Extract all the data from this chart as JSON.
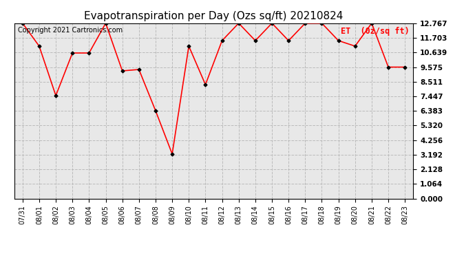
{
  "title": "Evapotranspiration per Day (Ozs sq/ft) 20210824",
  "legend_label": "ET  (0z/sq ft)",
  "copyright_text": "Copyright 2021 Cartronics.com",
  "dates": [
    "07/31",
    "08/01",
    "08/02",
    "08/03",
    "08/04",
    "08/05",
    "08/06",
    "08/07",
    "08/08",
    "08/09",
    "08/10",
    "08/11",
    "08/12",
    "08/13",
    "08/14",
    "08/15",
    "08/16",
    "08/17",
    "08/18",
    "08/19",
    "08/20",
    "08/21",
    "08/22",
    "08/23"
  ],
  "values": [
    12.767,
    11.1,
    7.5,
    10.6,
    10.6,
    12.767,
    9.3,
    9.4,
    6.4,
    3.25,
    11.1,
    8.3,
    11.5,
    12.767,
    11.5,
    12.767,
    11.5,
    12.767,
    12.767,
    11.5,
    11.1,
    12.767,
    9.575,
    9.575
  ],
  "yticks": [
    0.0,
    1.064,
    2.128,
    3.192,
    4.256,
    5.32,
    6.383,
    7.447,
    8.511,
    9.575,
    10.639,
    11.703,
    12.767
  ],
  "ylim": [
    0.0,
    12.767
  ],
  "line_color": "red",
  "marker_color": "black",
  "marker": "D",
  "marker_size": 2.5,
  "line_width": 1.2,
  "grid_color": "#bbbbbb",
  "plot_bg_color": "#e8e8e8",
  "fig_bg_color": "white",
  "title_fontsize": 11,
  "legend_color": "red",
  "copyright_fontsize": 7,
  "tick_fontsize": 7,
  "ytick_fontsize": 7.5
}
